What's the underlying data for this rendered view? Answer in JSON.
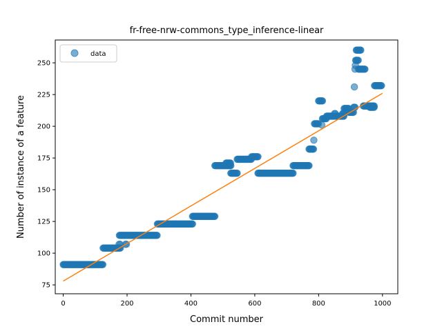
{
  "chart_data": {
    "type": "scatter",
    "title": "fr-free-nrw-commons_type_inference-linear",
    "xlabel": "Commit number",
    "ylabel": "Number of instance of a feature",
    "xlim": [
      -25,
      1048
    ],
    "ylim": [
      68,
      268
    ],
    "xticks": [
      0,
      200,
      400,
      600,
      800,
      1000
    ],
    "yticks": [
      75,
      100,
      125,
      150,
      175,
      200,
      225,
      250
    ],
    "grid": false,
    "legend": {
      "position": "top-left",
      "entries": [
        "data"
      ]
    },
    "colors": {
      "data": "#1f77b4",
      "fit": "#ff7f0e"
    },
    "segments": [
      {
        "x0": 0,
        "x1": 125,
        "step": 2,
        "y": 91
      },
      {
        "x0": 125,
        "x1": 180,
        "step": 2,
        "y": 104
      },
      {
        "x0": 175,
        "x1": 178,
        "step": 3,
        "y": 107
      },
      {
        "x0": 195,
        "x1": 198,
        "step": 3,
        "y": 107
      },
      {
        "x0": 176,
        "x1": 295,
        "step": 2,
        "y": 114
      },
      {
        "x0": 295,
        "x1": 405,
        "step": 2,
        "y": 123
      },
      {
        "x0": 405,
        "x1": 475,
        "step": 2,
        "y": 129
      },
      {
        "x0": 475,
        "x1": 525,
        "step": 2,
        "y": 169
      },
      {
        "x0": 510,
        "x1": 525,
        "step": 2,
        "y": 171
      },
      {
        "x0": 525,
        "x1": 545,
        "step": 2,
        "y": 163
      },
      {
        "x0": 545,
        "x1": 590,
        "step": 2,
        "y": 174
      },
      {
        "x0": 590,
        "x1": 610,
        "step": 2,
        "y": 176
      },
      {
        "x0": 610,
        "x1": 720,
        "step": 2,
        "y": 163
      },
      {
        "x0": 720,
        "x1": 770,
        "step": 2,
        "y": 169
      },
      {
        "x0": 770,
        "x1": 785,
        "step": 2,
        "y": 182
      },
      {
        "x0": 785,
        "x1": 786,
        "step": 2,
        "y": 189
      },
      {
        "x0": 787,
        "x1": 800,
        "step": 2,
        "y": 202
      },
      {
        "x0": 800,
        "x1": 812,
        "step": 2,
        "y": 220
      },
      {
        "x0": 810,
        "x1": 811,
        "step": 2,
        "y": 201
      },
      {
        "x0": 812,
        "x1": 825,
        "step": 2,
        "y": 206
      },
      {
        "x0": 825,
        "x1": 850,
        "step": 2,
        "y": 208
      },
      {
        "x0": 850,
        "x1": 853,
        "step": 2,
        "y": 210
      },
      {
        "x0": 853,
        "x1": 880,
        "step": 2,
        "y": 208
      },
      {
        "x0": 875,
        "x1": 882,
        "step": 2,
        "y": 210
      },
      {
        "x0": 880,
        "x1": 895,
        "step": 2,
        "y": 214
      },
      {
        "x0": 895,
        "x1": 910,
        "step": 2,
        "y": 211
      },
      {
        "x0": 910,
        "x1": 915,
        "step": 2,
        "y": 215
      },
      {
        "x0": 912,
        "x1": 913,
        "step": 2,
        "y": 231
      },
      {
        "x0": 914,
        "x1": 915,
        "step": 2,
        "y": 245
      },
      {
        "x0": 915,
        "x1": 916,
        "step": 2,
        "y": 248
      },
      {
        "x0": 916,
        "x1": 925,
        "step": 2,
        "y": 252
      },
      {
        "x0": 918,
        "x1": 932,
        "step": 2,
        "y": 260
      },
      {
        "x0": 925,
        "x1": 945,
        "step": 2,
        "y": 245
      },
      {
        "x0": 940,
        "x1": 975,
        "step": 2,
        "y": 216
      },
      {
        "x0": 960,
        "x1": 975,
        "step": 2,
        "y": 215
      },
      {
        "x0": 975,
        "x1": 997,
        "step": 2,
        "y": 232
      }
    ],
    "fit_line": {
      "x": [
        0,
        1000
      ],
      "y": [
        78,
        226
      ]
    }
  }
}
